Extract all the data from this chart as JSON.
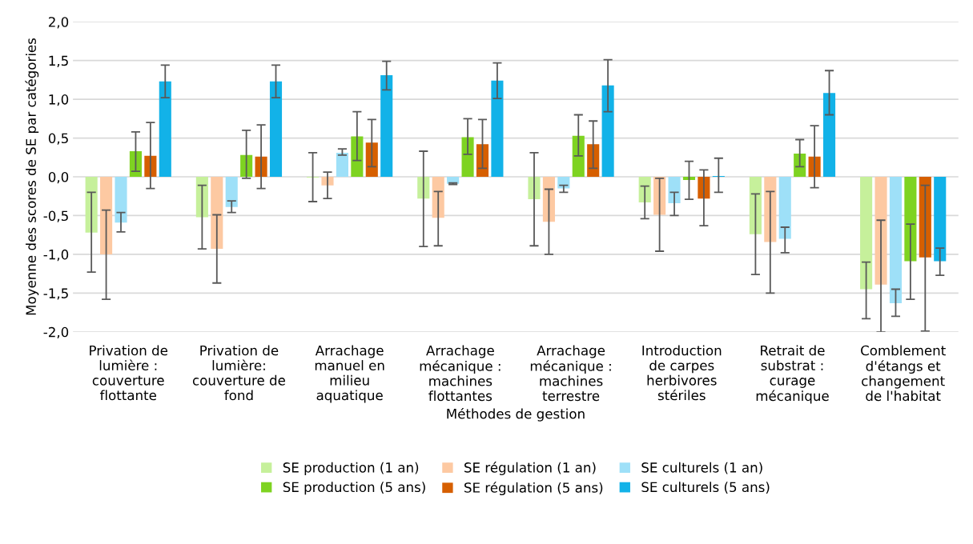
{
  "chart_data": {
    "type": "bar",
    "xlabel": "Méthodes de gestion",
    "ylabel": "Moyenne des scores de SE par catégories",
    "categories": [
      "Privation de\nlumière :\ncouverture\nflottante",
      "Privation de\nlumière:\ncouverture de\nfond",
      "Arrachage\nmanuel en\nmilieu\naquatique",
      "Arrachage\nmécanique :\nmachines\nflottantes",
      "Arrachage\nmécanique :\nmachines\nterrestre",
      "Introduction\nde carpes\nherbivores\nstériles",
      "Retrait de\nsubstrat :\ncurage\nmécanique",
      "Comblement\nd'étangs et\nchangement\nde l'habitat"
    ],
    "ylim": [
      -2.0,
      2.0
    ],
    "yticks": [
      {
        "value": -2.0,
        "label": "-2,0"
      },
      {
        "value": -1.5,
        "label": "-1,5"
      },
      {
        "value": -1.0,
        "label": "-1,0"
      },
      {
        "value": -0.5,
        "label": "-0,5"
      },
      {
        "value": 0.0,
        "label": "0,0"
      },
      {
        "value": 0.5,
        "label": "0,5"
      },
      {
        "value": 1.0,
        "label": "1,0"
      },
      {
        "value": 1.5,
        "label": "1,5"
      },
      {
        "value": 2.0,
        "label": "2,0"
      }
    ],
    "grid": "y",
    "legend": "bottom",
    "series": [
      {
        "name": "SE production (1 an)",
        "color": "#c6f09b",
        "values": [
          -0.72,
          -0.52,
          -0.01,
          -0.28,
          -0.29,
          -0.33,
          -0.74,
          -1.45
        ],
        "errors": [
          [
            -1.23,
            -0.2
          ],
          [
            -0.93,
            -0.11
          ],
          [
            -0.32,
            0.31
          ],
          [
            -0.9,
            0.33
          ],
          [
            -0.89,
            0.31
          ],
          [
            -0.54,
            -0.12
          ],
          [
            -1.26,
            -0.22
          ],
          [
            -1.83,
            -1.1
          ]
        ]
      },
      {
        "name": "SE régulation (1 an)",
        "color": "#fdc9a2",
        "values": [
          -1.0,
          -0.93,
          -0.11,
          -0.53,
          -0.58,
          -0.49,
          -0.84,
          -1.39
        ],
        "errors": [
          [
            -1.58,
            -0.43
          ],
          [
            -1.37,
            -0.49
          ],
          [
            -0.28,
            0.06
          ],
          [
            -0.89,
            -0.19
          ],
          [
            -1.0,
            -0.16
          ],
          [
            -0.96,
            -0.02
          ],
          [
            -1.5,
            -0.19
          ],
          [
            -2.0,
            -0.56
          ]
        ]
      },
      {
        "name": "SE culturels (1 an)",
        "color": "#9ee0f8",
        "values": [
          -0.59,
          -0.39,
          0.31,
          -0.09,
          -0.15,
          -0.34,
          -0.8,
          -1.63
        ],
        "errors": [
          [
            -0.71,
            -0.46
          ],
          [
            -0.46,
            -0.31
          ],
          [
            0.28,
            0.36
          ],
          [
            -0.1,
            -0.08
          ],
          [
            -0.2,
            -0.11
          ],
          [
            -0.5,
            -0.2
          ],
          [
            -0.98,
            -0.65
          ],
          [
            -1.8,
            -1.45
          ]
        ]
      },
      {
        "name": "SE production (5 ans)",
        "color": "#7ed321",
        "values": [
          0.33,
          0.28,
          0.52,
          0.51,
          0.53,
          -0.04,
          0.3,
          -1.09
        ],
        "errors": [
          [
            0.07,
            0.58
          ],
          [
            -0.02,
            0.6
          ],
          [
            0.21,
            0.84
          ],
          [
            0.29,
            0.75
          ],
          [
            0.27,
            0.8
          ],
          [
            -0.29,
            0.2
          ],
          [
            0.13,
            0.48
          ],
          [
            -1.58,
            -0.61
          ]
        ]
      },
      {
        "name": "SE régulation (5 ans)",
        "color": "#d65f00",
        "values": [
          0.27,
          0.26,
          0.44,
          0.42,
          0.42,
          -0.28,
          0.26,
          -1.04
        ],
        "errors": [
          [
            -0.15,
            0.7
          ],
          [
            -0.15,
            0.67
          ],
          [
            0.13,
            0.74
          ],
          [
            0.11,
            0.74
          ],
          [
            0.11,
            0.72
          ],
          [
            -0.63,
            0.09
          ],
          [
            -0.14,
            0.66
          ],
          [
            -1.99,
            -0.11
          ]
        ]
      },
      {
        "name": "SE culturels (5 ans)",
        "color": "#12b2e8",
        "values": [
          1.23,
          1.23,
          1.31,
          1.24,
          1.18,
          0.01,
          1.08,
          -1.09
        ],
        "errors": [
          [
            1.02,
            1.44
          ],
          [
            1.02,
            1.44
          ],
          [
            1.12,
            1.49
          ],
          [
            1.01,
            1.47
          ],
          [
            0.84,
            1.51
          ],
          [
            -0.2,
            0.24
          ],
          [
            0.8,
            1.37
          ],
          [
            -1.27,
            -0.92
          ]
        ]
      }
    ]
  }
}
